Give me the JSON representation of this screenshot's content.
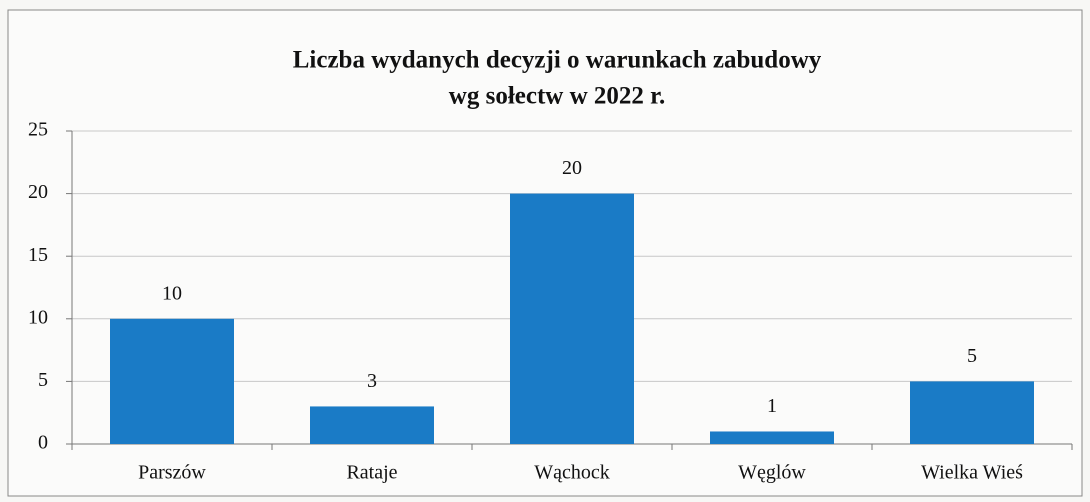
{
  "chart_data": {
    "type": "bar",
    "title": "Liczba wydanych decyzji o warunkach zabudowy",
    "subtitle": "wg sołectw w 2022 r.",
    "categories": [
      "Parszów",
      "Rataje",
      "Wąchock",
      "Węglów",
      "Wielka Wieś"
    ],
    "values": [
      10,
      3,
      20,
      1,
      5
    ],
    "color": "#1a7bc6",
    "ylim": [
      0,
      25
    ],
    "yticks": [
      0,
      5,
      10,
      15,
      20,
      25
    ],
    "grid": true
  }
}
